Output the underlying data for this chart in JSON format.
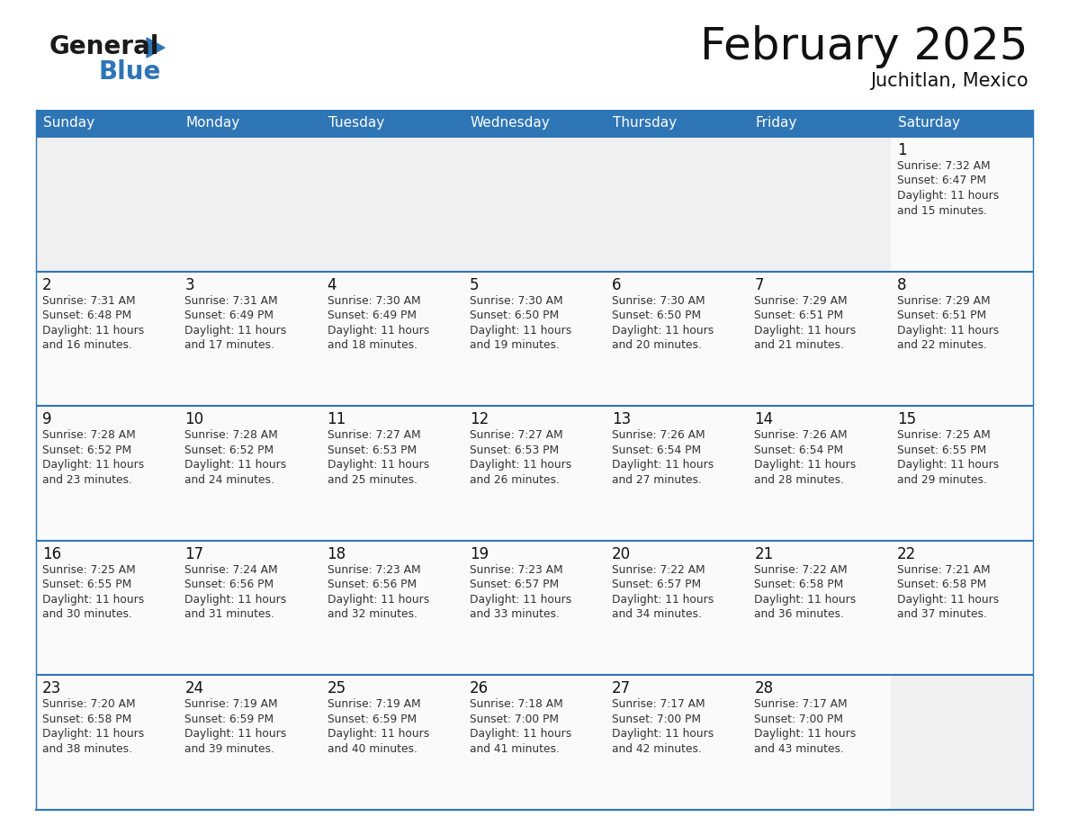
{
  "title": "February 2025",
  "subtitle": "Juchitlan, Mexico",
  "header_bg": "#2E75B6",
  "header_text_color": "#FFFFFF",
  "border_color": "#2E75B6",
  "text_color": "#222222",
  "cell_text_color": "#444444",
  "day_names": [
    "Sunday",
    "Monday",
    "Tuesday",
    "Wednesday",
    "Thursday",
    "Friday",
    "Saturday"
  ],
  "calendar": [
    [
      null,
      null,
      null,
      null,
      null,
      null,
      {
        "day": 1,
        "sunrise": "7:32 AM",
        "sunset": "6:47 PM",
        "daylight_hours": 11,
        "daylight_minutes": 15
      }
    ],
    [
      {
        "day": 2,
        "sunrise": "7:31 AM",
        "sunset": "6:48 PM",
        "daylight_hours": 11,
        "daylight_minutes": 16
      },
      {
        "day": 3,
        "sunrise": "7:31 AM",
        "sunset": "6:49 PM",
        "daylight_hours": 11,
        "daylight_minutes": 17
      },
      {
        "day": 4,
        "sunrise": "7:30 AM",
        "sunset": "6:49 PM",
        "daylight_hours": 11,
        "daylight_minutes": 18
      },
      {
        "day": 5,
        "sunrise": "7:30 AM",
        "sunset": "6:50 PM",
        "daylight_hours": 11,
        "daylight_minutes": 19
      },
      {
        "day": 6,
        "sunrise": "7:30 AM",
        "sunset": "6:50 PM",
        "daylight_hours": 11,
        "daylight_minutes": 20
      },
      {
        "day": 7,
        "sunrise": "7:29 AM",
        "sunset": "6:51 PM",
        "daylight_hours": 11,
        "daylight_minutes": 21
      },
      {
        "day": 8,
        "sunrise": "7:29 AM",
        "sunset": "6:51 PM",
        "daylight_hours": 11,
        "daylight_minutes": 22
      }
    ],
    [
      {
        "day": 9,
        "sunrise": "7:28 AM",
        "sunset": "6:52 PM",
        "daylight_hours": 11,
        "daylight_minutes": 23
      },
      {
        "day": 10,
        "sunrise": "7:28 AM",
        "sunset": "6:52 PM",
        "daylight_hours": 11,
        "daylight_minutes": 24
      },
      {
        "day": 11,
        "sunrise": "7:27 AM",
        "sunset": "6:53 PM",
        "daylight_hours": 11,
        "daylight_minutes": 25
      },
      {
        "day": 12,
        "sunrise": "7:27 AM",
        "sunset": "6:53 PM",
        "daylight_hours": 11,
        "daylight_minutes": 26
      },
      {
        "day": 13,
        "sunrise": "7:26 AM",
        "sunset": "6:54 PM",
        "daylight_hours": 11,
        "daylight_minutes": 27
      },
      {
        "day": 14,
        "sunrise": "7:26 AM",
        "sunset": "6:54 PM",
        "daylight_hours": 11,
        "daylight_minutes": 28
      },
      {
        "day": 15,
        "sunrise": "7:25 AM",
        "sunset": "6:55 PM",
        "daylight_hours": 11,
        "daylight_minutes": 29
      }
    ],
    [
      {
        "day": 16,
        "sunrise": "7:25 AM",
        "sunset": "6:55 PM",
        "daylight_hours": 11,
        "daylight_minutes": 30
      },
      {
        "day": 17,
        "sunrise": "7:24 AM",
        "sunset": "6:56 PM",
        "daylight_hours": 11,
        "daylight_minutes": 31
      },
      {
        "day": 18,
        "sunrise": "7:23 AM",
        "sunset": "6:56 PM",
        "daylight_hours": 11,
        "daylight_minutes": 32
      },
      {
        "day": 19,
        "sunrise": "7:23 AM",
        "sunset": "6:57 PM",
        "daylight_hours": 11,
        "daylight_minutes": 33
      },
      {
        "day": 20,
        "sunrise": "7:22 AM",
        "sunset": "6:57 PM",
        "daylight_hours": 11,
        "daylight_minutes": 34
      },
      {
        "day": 21,
        "sunrise": "7:22 AM",
        "sunset": "6:58 PM",
        "daylight_hours": 11,
        "daylight_minutes": 36
      },
      {
        "day": 22,
        "sunrise": "7:21 AM",
        "sunset": "6:58 PM",
        "daylight_hours": 11,
        "daylight_minutes": 37
      }
    ],
    [
      {
        "day": 23,
        "sunrise": "7:20 AM",
        "sunset": "6:58 PM",
        "daylight_hours": 11,
        "daylight_minutes": 38
      },
      {
        "day": 24,
        "sunrise": "7:19 AM",
        "sunset": "6:59 PM",
        "daylight_hours": 11,
        "daylight_minutes": 39
      },
      {
        "day": 25,
        "sunrise": "7:19 AM",
        "sunset": "6:59 PM",
        "daylight_hours": 11,
        "daylight_minutes": 40
      },
      {
        "day": 26,
        "sunrise": "7:18 AM",
        "sunset": "7:00 PM",
        "daylight_hours": 11,
        "daylight_minutes": 41
      },
      {
        "day": 27,
        "sunrise": "7:17 AM",
        "sunset": "7:00 PM",
        "daylight_hours": 11,
        "daylight_minutes": 42
      },
      {
        "day": 28,
        "sunrise": "7:17 AM",
        "sunset": "7:00 PM",
        "daylight_hours": 11,
        "daylight_minutes": 43
      },
      null
    ]
  ],
  "logo_text_general": "General",
  "logo_text_blue": "Blue",
  "logo_color_black": "#1a1a1a",
  "logo_color_blue": "#2E75B6",
  "logo_triangle_color": "#2E75B6"
}
